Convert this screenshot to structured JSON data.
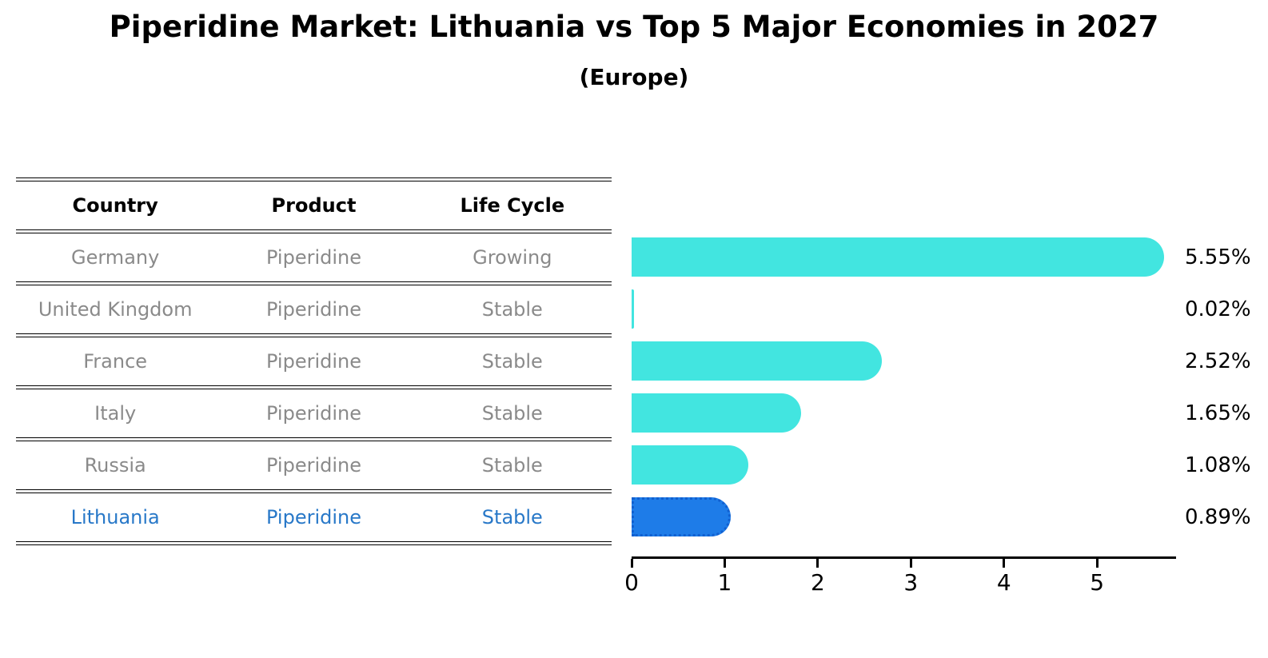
{
  "title": "Piperidine Market: Lithuania vs Top 5 Major Economies in 2027",
  "subtitle": "(Europe)",
  "table": {
    "headers": [
      "Country",
      "Product",
      "Life Cycle"
    ],
    "rows": [
      {
        "country": "Germany",
        "product": "Piperidine",
        "life_cycle": "Growing",
        "highlighted": false
      },
      {
        "country": "United Kingdom",
        "product": "Piperidine",
        "life_cycle": "Stable",
        "highlighted": false
      },
      {
        "country": "France",
        "product": "Piperidine",
        "life_cycle": "Stable",
        "highlighted": false
      },
      {
        "country": "Italy",
        "product": "Piperidine",
        "life_cycle": "Stable",
        "highlighted": false
      },
      {
        "country": "Russia",
        "product": "Piperidine",
        "life_cycle": "Stable",
        "highlighted": false
      },
      {
        "country": "Lithuania",
        "product": "Piperidine",
        "life_cycle": "Stable",
        "highlighted": true
      }
    ]
  },
  "chart_data": {
    "type": "bar",
    "orientation": "horizontal",
    "title": "Piperidine Market: Lithuania vs Top 5 Major Economies in 2027",
    "subtitle": "(Europe)",
    "categories": [
      "Germany",
      "United Kingdom",
      "France",
      "Italy",
      "Russia",
      "Lithuania"
    ],
    "values": [
      5.55,
      0.02,
      2.52,
      1.65,
      1.08,
      0.89
    ],
    "value_labels": [
      "5.55%",
      "0.02%",
      "2.52%",
      "1.65%",
      "1.08%",
      "0.89%"
    ],
    "x_ticks": [
      "0",
      "1",
      "2",
      "3",
      "4",
      "5"
    ],
    "xlim": [
      0,
      5.84
    ],
    "highlight_index": 5,
    "grid": false,
    "legend": false
  },
  "colors": {
    "bar": "#42e5e0",
    "highlight_bar": "#1e7ce8",
    "highlight_border": "#1160d0",
    "highlight_text": "#2878c8",
    "row_text": "#8a8a8a",
    "header_text": "#000000",
    "axis": "#000000",
    "background": "#ffffff"
  }
}
